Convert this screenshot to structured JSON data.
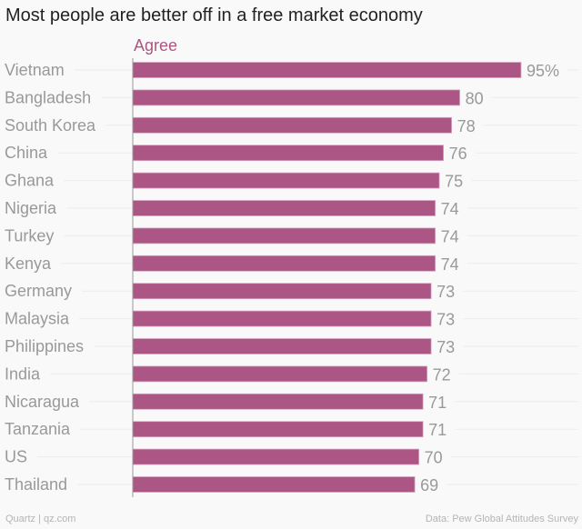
{
  "title": "Most people are better off in a free market economy",
  "footer": {
    "left": "Quartz | qz.com",
    "right": "Data: Pew Global Attitudes Survey"
  },
  "colors": {
    "bar": "#ab5685",
    "series_label": "#ab5685",
    "label": "#999999",
    "grid": "#ececec",
    "axis": "#999999"
  },
  "chart_data": {
    "type": "bar",
    "orientation": "horizontal",
    "title": "Most people are better off in a free market economy",
    "series": [
      {
        "name": "Agree",
        "values": [
          95,
          80,
          78,
          76,
          75,
          74,
          74,
          74,
          73,
          73,
          73,
          72,
          71,
          71,
          70,
          69
        ]
      }
    ],
    "categories": [
      "Vietnam",
      "Bangladesh",
      "South Korea",
      "China",
      "Ghana",
      "Nigeria",
      "Turkey",
      "Kenya",
      "Germany",
      "Malaysia",
      "Philippines",
      "India",
      "Nicaragua",
      "Tanzania",
      "US",
      "Thailand"
    ],
    "value_labels": [
      "95%",
      "80",
      "78",
      "76",
      "75",
      "74",
      "74",
      "74",
      "73",
      "73",
      "73",
      "72",
      "71",
      "71",
      "70",
      "69"
    ],
    "xlim": [
      0,
      95
    ],
    "grid": true,
    "legend": "top-left"
  }
}
